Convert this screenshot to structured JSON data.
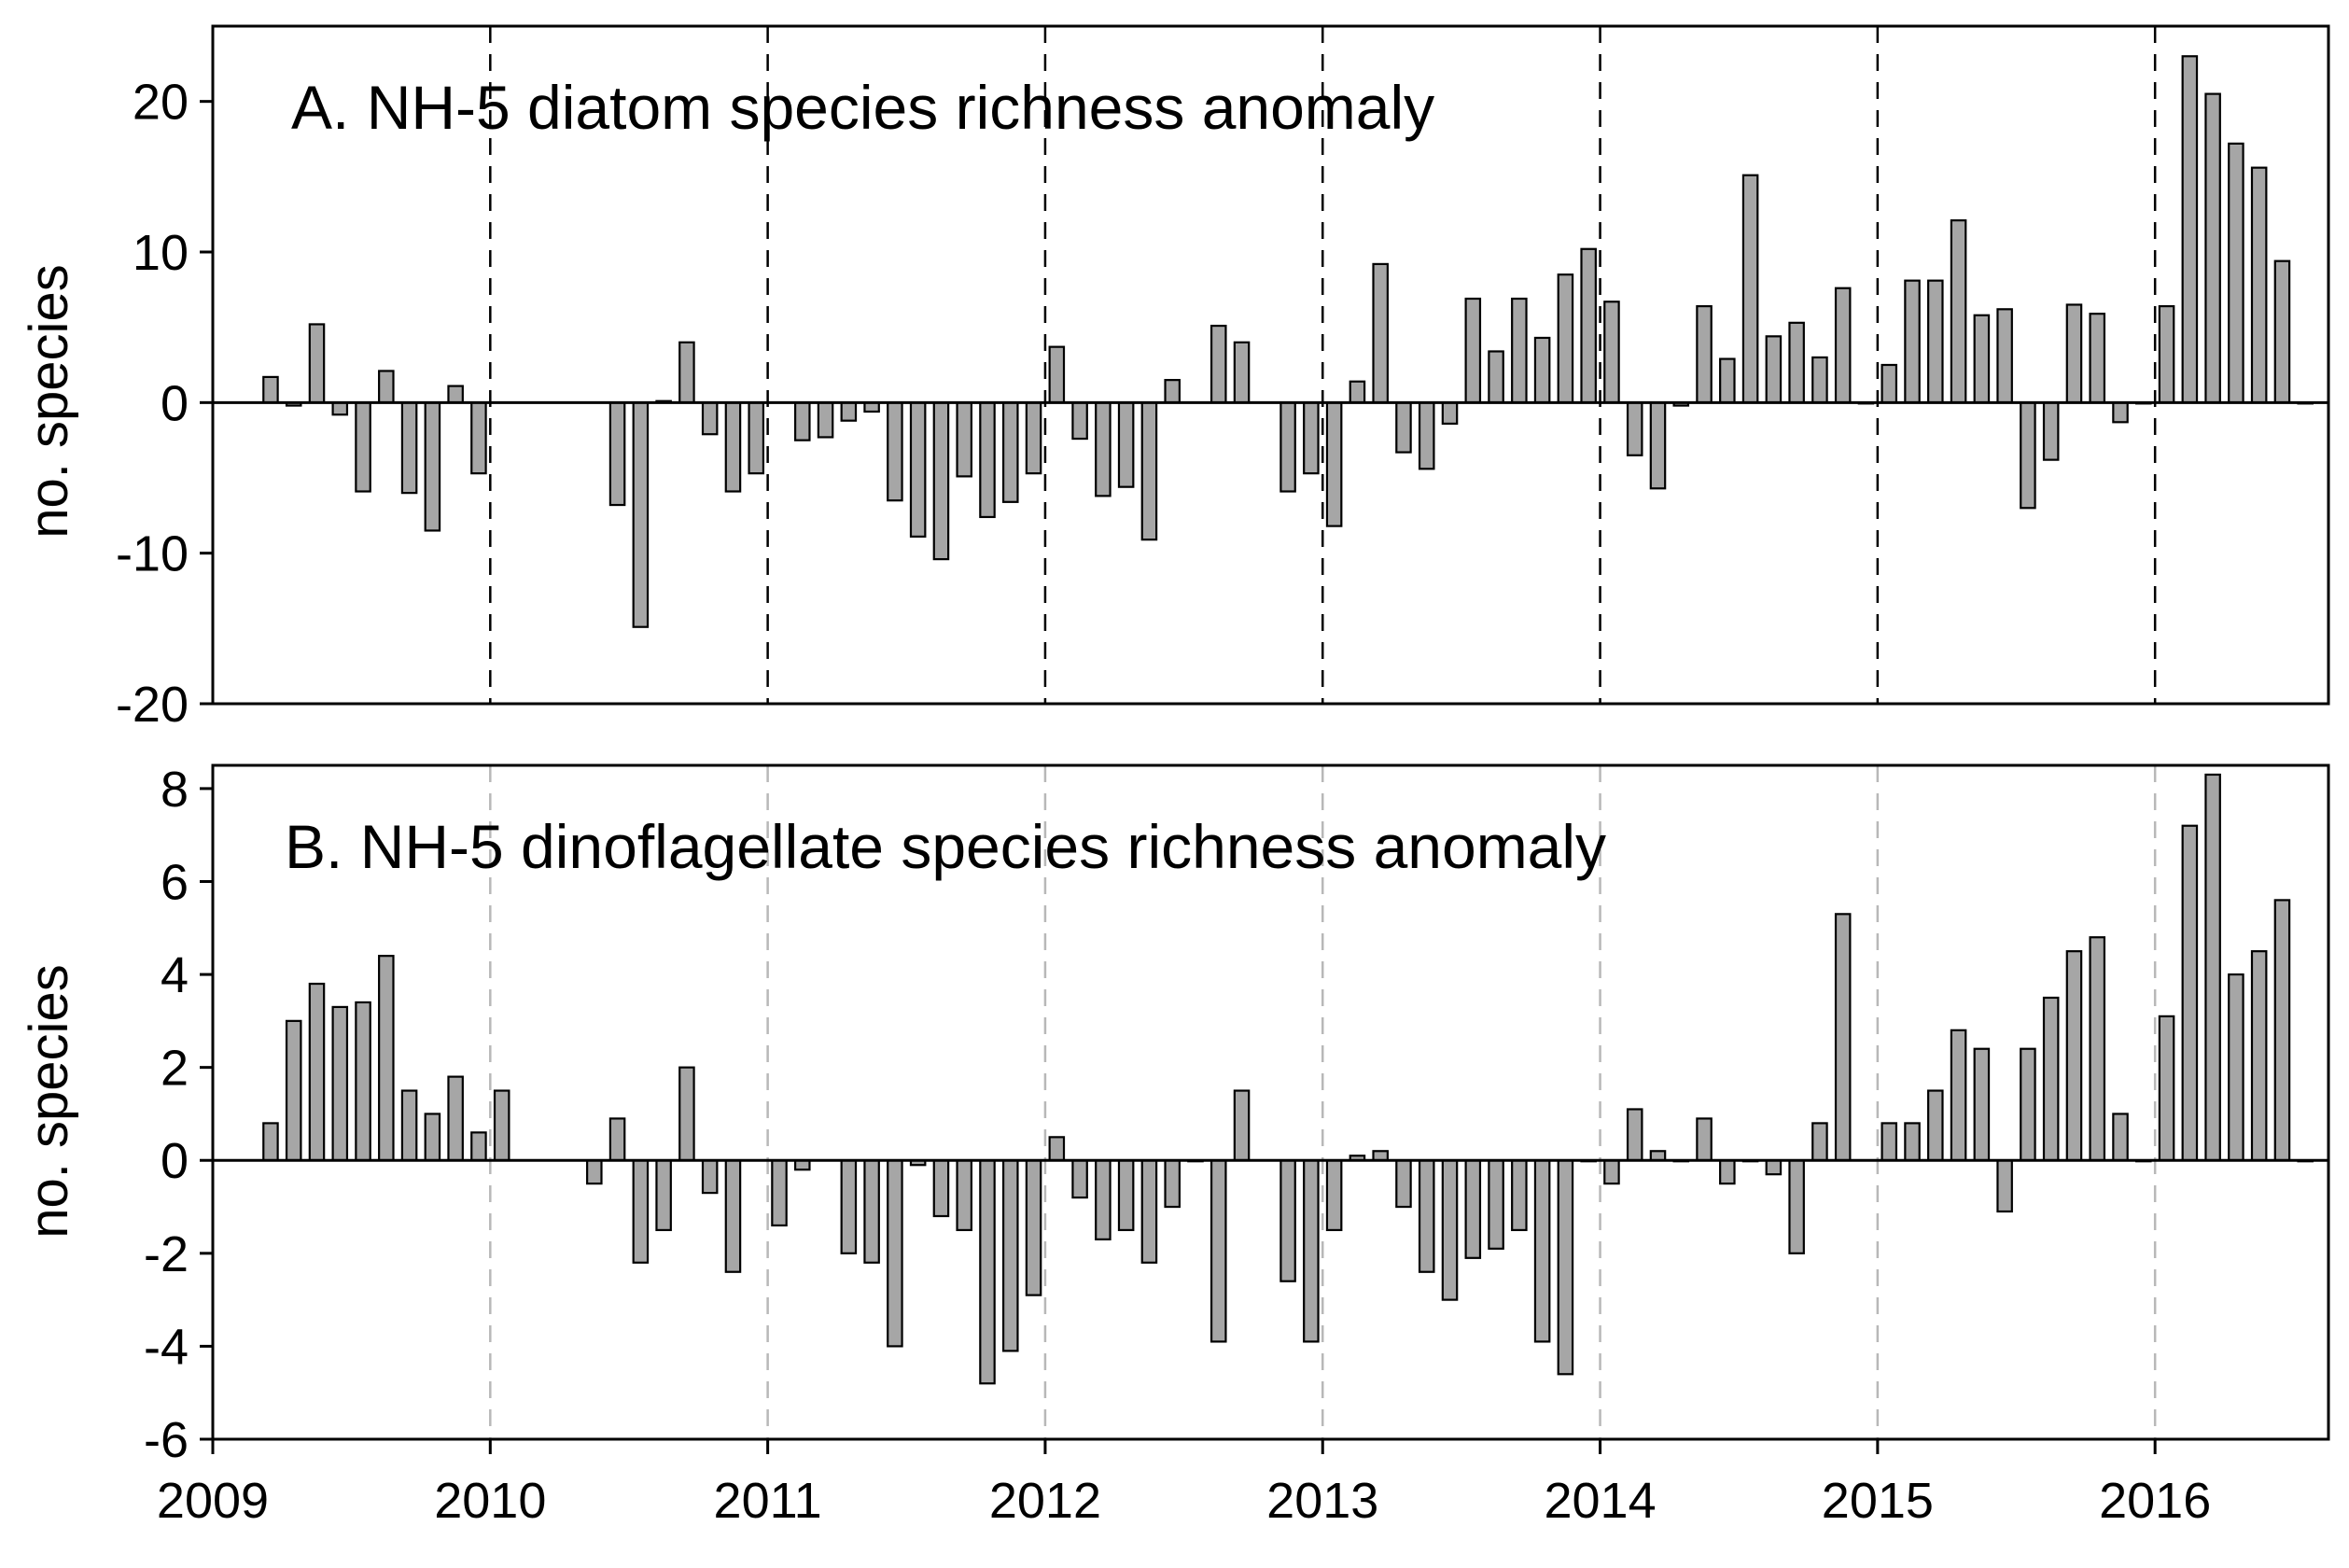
{
  "colors": {
    "bar_fill": "#a6a6a6",
    "bar_stroke": "#000000",
    "axis": "#000000",
    "gridline_a": "#000000",
    "gridline_b": "#b8b8b8",
    "background": "#ffffff"
  },
  "x_axis": {
    "ticks": [
      "2009",
      "2010",
      "2011",
      "2012",
      "2013",
      "2014",
      "2015",
      "2016"
    ]
  },
  "chart_data": [
    {
      "type": "bar",
      "title": "A. NH-5 diatom species richness anomaly",
      "ylabel": "no. species",
      "xlabel": "",
      "ylim": [
        -20,
        25
      ],
      "yticks": [
        -20,
        -10,
        0,
        10,
        20
      ],
      "xlim": [
        "2009-01",
        "2016-08"
      ],
      "grid": "dashed vertical lines at each year",
      "x": [
        "2009-03",
        "2009-04",
        "2009-05",
        "2009-06",
        "2009-07",
        "2009-08",
        "2009-09",
        "2009-10",
        "2009-11",
        "2009-12",
        "2010-06",
        "2010-07",
        "2010-08",
        "2010-09",
        "2010-10",
        "2010-11",
        "2010-12",
        "2011-02",
        "2011-03",
        "2011-04",
        "2011-05",
        "2011-06",
        "2011-07",
        "2011-08",
        "2011-09",
        "2011-10",
        "2011-11",
        "2011-12",
        "2012-01",
        "2012-02",
        "2012-03",
        "2012-04",
        "2012-05",
        "2012-06",
        "2012-08",
        "2012-09",
        "2012-11",
        "2012-12",
        "2013-01",
        "2013-02",
        "2013-03",
        "2013-04",
        "2013-05",
        "2013-06",
        "2013-07",
        "2013-08",
        "2013-09",
        "2013-10",
        "2013-11",
        "2013-12",
        "2014-01",
        "2014-02",
        "2014-03",
        "2014-04",
        "2014-05",
        "2014-06",
        "2014-07",
        "2014-08",
        "2014-09",
        "2014-10",
        "2014-11",
        "2014-12",
        "2015-01",
        "2015-02",
        "2015-03",
        "2015-04",
        "2015-05",
        "2015-06",
        "2015-07",
        "2015-08",
        "2015-09",
        "2015-10",
        "2015-11",
        "2015-12",
        "2016-01",
        "2016-02",
        "2016-03",
        "2016-04",
        "2016-05",
        "2016-06",
        "2016-07"
      ],
      "values": [
        1.7,
        -0.2,
        5.2,
        -0.8,
        -5.9,
        2.1,
        -6.0,
        -8.5,
        1.1,
        -4.7,
        -6.8,
        -14.9,
        0.1,
        4.0,
        -2.1,
        -5.9,
        -4.7,
        -2.5,
        -2.3,
        -1.2,
        -0.6,
        -6.5,
        -8.9,
        -10.4,
        -4.9,
        -7.6,
        -6.6,
        -4.7,
        3.7,
        -2.4,
        -6.2,
        -5.6,
        -9.1,
        1.5,
        5.1,
        4.0,
        -5.9,
        -4.7,
        -8.2,
        1.4,
        9.2,
        -3.3,
        -4.4,
        -1.4,
        6.9,
        3.4,
        6.9,
        4.3,
        8.5,
        10.2,
        6.7,
        -3.5,
        -5.7,
        -0.2,
        6.4,
        2.9,
        15.1,
        4.4,
        5.3,
        3.0,
        7.6,
        0.0,
        2.5,
        8.1,
        8.1,
        12.1,
        5.8,
        6.2,
        -7.0,
        -3.8,
        6.5,
        5.9,
        -1.3,
        0.0,
        6.4,
        23.0,
        20.5,
        17.2,
        15.6,
        9.4,
        0.0
      ]
    },
    {
      "type": "bar",
      "title": "B. NH-5 dinoflagellate species richness anomaly",
      "ylabel": "no. species",
      "xlabel": "",
      "ylim": [
        -6,
        8.5
      ],
      "yticks": [
        -6,
        -4,
        -2,
        0,
        2,
        4,
        6,
        8
      ],
      "xlim": [
        "2009-01",
        "2016-08"
      ],
      "grid": "dashed vertical lines at each year",
      "x": [
        "2009-03",
        "2009-04",
        "2009-05",
        "2009-06",
        "2009-07",
        "2009-08",
        "2009-09",
        "2009-10",
        "2009-11",
        "2009-12",
        "2010-01",
        "2010-05",
        "2010-06",
        "2010-07",
        "2010-08",
        "2010-09",
        "2010-10",
        "2010-11",
        "2011-01",
        "2011-02",
        "2011-04",
        "2011-05",
        "2011-06",
        "2011-07",
        "2011-08",
        "2011-09",
        "2011-10",
        "2011-11",
        "2011-12",
        "2012-01",
        "2012-02",
        "2012-03",
        "2012-04",
        "2012-05",
        "2012-06",
        "2012-07",
        "2012-08",
        "2012-09",
        "2012-11",
        "2012-12",
        "2013-01",
        "2013-02",
        "2013-03",
        "2013-04",
        "2013-05",
        "2013-06",
        "2013-07",
        "2013-08",
        "2013-09",
        "2013-10",
        "2013-11",
        "2013-12",
        "2014-01",
        "2014-02",
        "2014-03",
        "2014-04",
        "2014-05",
        "2014-06",
        "2014-07",
        "2014-08",
        "2014-09",
        "2014-10",
        "2014-11",
        "2015-01",
        "2015-02",
        "2015-03",
        "2015-04",
        "2015-05",
        "2015-06",
        "2015-07",
        "2015-08",
        "2015-09",
        "2015-10",
        "2015-11",
        "2015-12",
        "2016-01",
        "2016-02",
        "2016-03",
        "2016-04",
        "2016-05",
        "2016-06",
        "2016-07"
      ],
      "values": [
        0.8,
        3.0,
        3.8,
        3.3,
        3.4,
        4.4,
        1.5,
        1.0,
        1.8,
        0.6,
        1.5,
        -0.5,
        0.9,
        -2.2,
        -1.5,
        2.0,
        -0.7,
        -2.4,
        -1.4,
        -0.2,
        -2.0,
        -2.2,
        -4.0,
        -0.1,
        -1.2,
        -1.5,
        -4.8,
        -4.1,
        -2.9,
        0.5,
        -0.8,
        -1.7,
        -1.5,
        -2.2,
        -1.0,
        0.0,
        -3.9,
        1.5,
        -2.6,
        -3.9,
        -1.5,
        0.1,
        0.2,
        -1.0,
        -2.4,
        -3.0,
        -2.1,
        -1.9,
        -1.5,
        -3.9,
        -4.6,
        0.0,
        -0.5,
        1.1,
        0.2,
        0.0,
        0.9,
        -0.5,
        0.0,
        -0.3,
        -2.0,
        0.8,
        5.3,
        0.8,
        0.8,
        1.5,
        2.8,
        2.4,
        -1.1,
        2.4,
        3.5,
        4.5,
        4.8,
        1.0,
        0.0,
        3.1,
        7.2,
        8.3,
        4.0,
        4.5,
        5.6,
        0.0
      ]
    }
  ]
}
